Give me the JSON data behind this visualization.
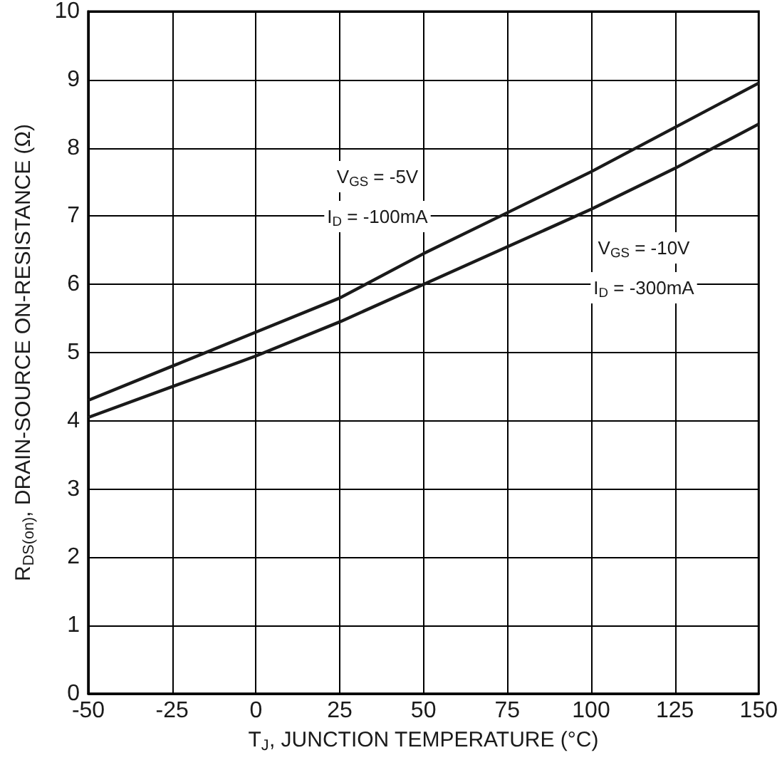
{
  "chart_data": {
    "type": "line",
    "xlabel": "T$_{J}$, JUNCTION TEMPERATURE (°C)",
    "ylabel": "R$_{DS(on)}$, DRAIN-SOURCE ON-RESISTANCE (Ω)",
    "x": [
      -50,
      -25,
      0,
      25,
      50,
      75,
      100,
      125,
      150
    ],
    "series": [
      {
        "color": "#1a1a1a",
        "values": [
          4.3,
          4.8,
          5.3,
          5.8,
          6.45,
          7.05,
          7.65,
          8.3,
          8.95
        ]
      },
      {
        "color": "#1a1a1a",
        "values": [
          4.05,
          4.5,
          4.95,
          5.45,
          6.0,
          6.55,
          7.1,
          7.7,
          8.35
        ]
      }
    ],
    "annotations": [
      "V$_{GS}$ = -5V",
      "I$_{D}$ = -100mA",
      "V$_{GS}$ = -10V",
      "I$_{D}$ = -300mA"
    ],
    "xlim": [
      -50,
      150
    ],
    "xticks": [
      -50,
      -25,
      0,
      25,
      50,
      75,
      100,
      125,
      150
    ],
    "ylim": [
      0,
      10
    ],
    "yticks": [
      0,
      1,
      2,
      3,
      4,
      5,
      6,
      7,
      8,
      9,
      10
    ],
    "grid": true,
    "marker": "none",
    "line_style": "solid"
  }
}
